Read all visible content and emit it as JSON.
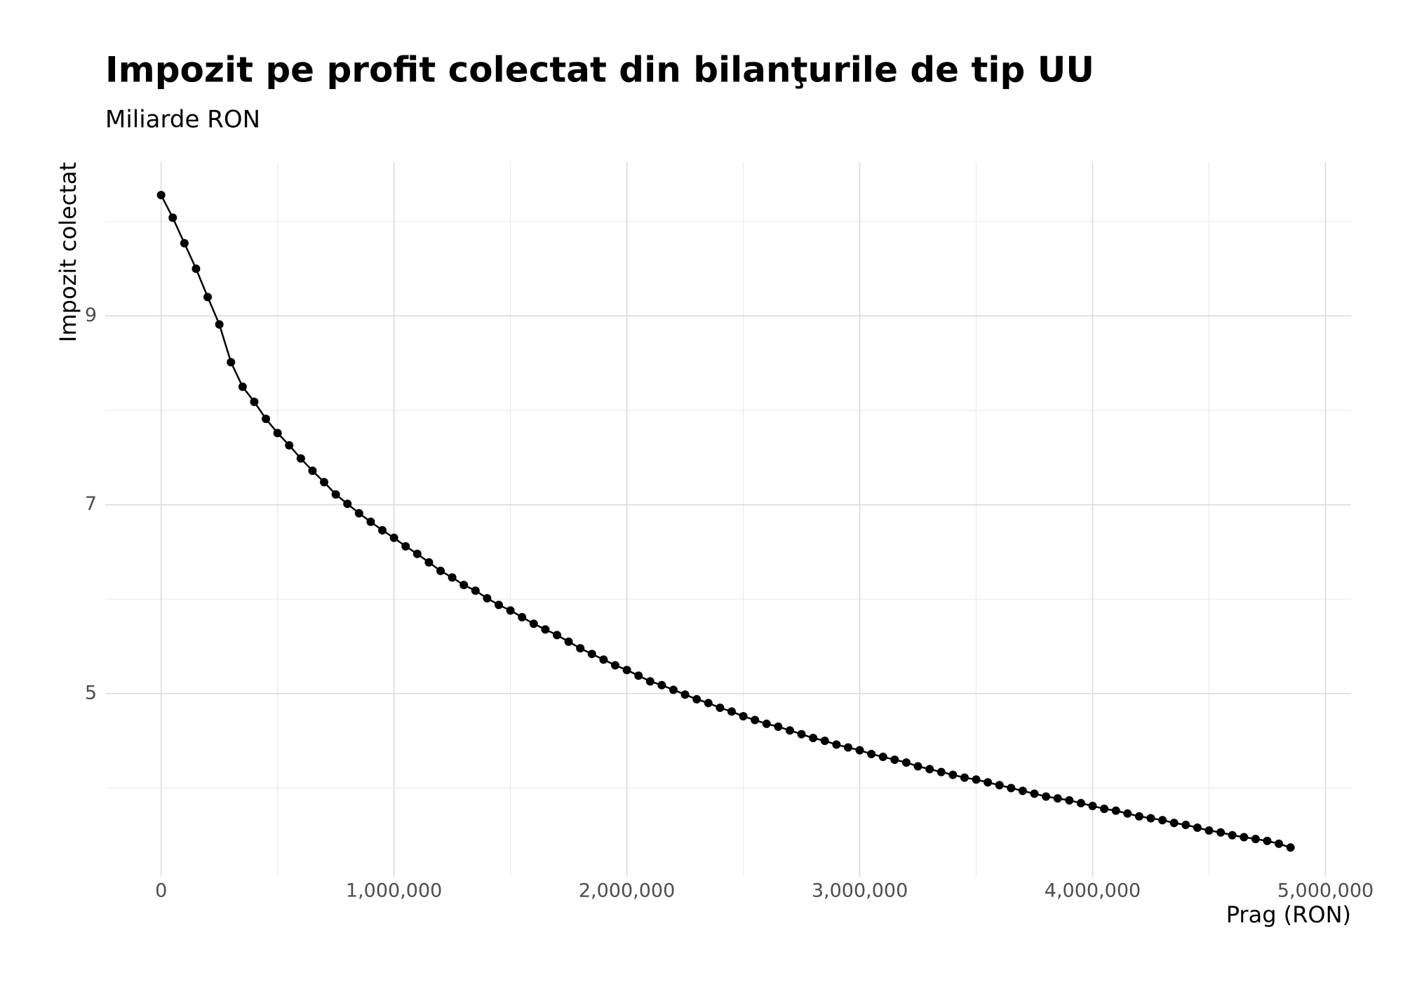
{
  "chart_data": {
    "type": "line",
    "title": "Impozit pe profit colectat din bilanţurile de tip UU",
    "subtitle": "Miliarde RON",
    "x_label": "Prag (RON)",
    "y_label": "Impozit colectat",
    "x": [
      0,
      50000,
      100000,
      150000,
      200000,
      250000,
      300000,
      350000,
      400000,
      450000,
      500000,
      550000,
      600000,
      650000,
      700000,
      750000,
      800000,
      850000,
      900000,
      950000,
      1000000,
      1050000,
      1100000,
      1150000,
      1200000,
      1250000,
      1300000,
      1350000,
      1400000,
      1450000,
      1500000,
      1550000,
      1600000,
      1650000,
      1700000,
      1750000,
      1800000,
      1850000,
      1900000,
      1950000,
      2000000,
      2050000,
      2100000,
      2150000,
      2200000,
      2250000,
      2300000,
      2350000,
      2400000,
      2450000,
      2500000,
      2550000,
      2600000,
      2650000,
      2700000,
      2750000,
      2800000,
      2850000,
      2900000,
      2950000,
      3000000,
      3050000,
      3100000,
      3150000,
      3200000,
      3250000,
      3300000,
      3350000,
      3400000,
      3450000,
      3500000,
      3550000,
      3600000,
      3650000,
      3700000,
      3750000,
      3800000,
      3850000,
      3900000,
      3950000,
      4000000,
      4050000,
      4100000,
      4150000,
      4200000,
      4250000,
      4300000,
      4350000,
      4400000,
      4450000,
      4500000,
      4550000,
      4600000,
      4650000,
      4700000,
      4750000,
      4800000,
      4850000
    ],
    "series": [
      {
        "color": "#000000",
        "values": [
          10.28,
          10.04,
          9.77,
          9.5,
          9.2,
          8.91,
          8.51,
          8.25,
          8.09,
          7.91,
          7.76,
          7.63,
          7.49,
          7.36,
          7.24,
          7.11,
          7.01,
          6.91,
          6.82,
          6.73,
          6.65,
          6.56,
          6.48,
          6.39,
          6.3,
          6.23,
          6.15,
          6.09,
          6.01,
          5.94,
          5.88,
          5.81,
          5.74,
          5.68,
          5.62,
          5.55,
          5.48,
          5.42,
          5.36,
          5.3,
          5.25,
          5.19,
          5.13,
          5.09,
          5.04,
          4.99,
          4.94,
          4.9,
          4.85,
          4.81,
          4.76,
          4.72,
          4.68,
          4.65,
          4.61,
          4.57,
          4.53,
          4.5,
          4.46,
          4.43,
          4.4,
          4.36,
          4.33,
          4.3,
          4.27,
          4.23,
          4.2,
          4.17,
          4.14,
          4.11,
          4.09,
          4.06,
          4.03,
          4.0,
          3.97,
          3.94,
          3.91,
          3.89,
          3.87,
          3.84,
          3.81,
          3.78,
          3.76,
          3.73,
          3.7,
          3.68,
          3.66,
          3.63,
          3.61,
          3.58,
          3.55,
          3.53,
          3.5,
          3.48,
          3.46,
          3.44,
          3.41,
          3.37
        ]
      }
    ],
    "xlim": [
      -240000,
      5110000
    ],
    "ylim": [
      3.06,
      10.63
    ],
    "xticks": [
      0,
      {
        "value": 1000000,
        "label": "1,000,000"
      },
      {
        "value": 2000000,
        "label": "2,000,000"
      },
      {
        "value": 3000000,
        "label": "3,000,000"
      },
      {
        "value": 4000000,
        "label": "4,000,000"
      },
      {
        "value": 5000000,
        "label": "5,000,000"
      }
    ],
    "yticks": [
      5,
      7,
      9
    ],
    "minor_xticks": [
      500000,
      1500000,
      2500000,
      3500000,
      4500000
    ],
    "minor_yticks": [
      4,
      6,
      8,
      10
    ],
    "grid": true
  }
}
